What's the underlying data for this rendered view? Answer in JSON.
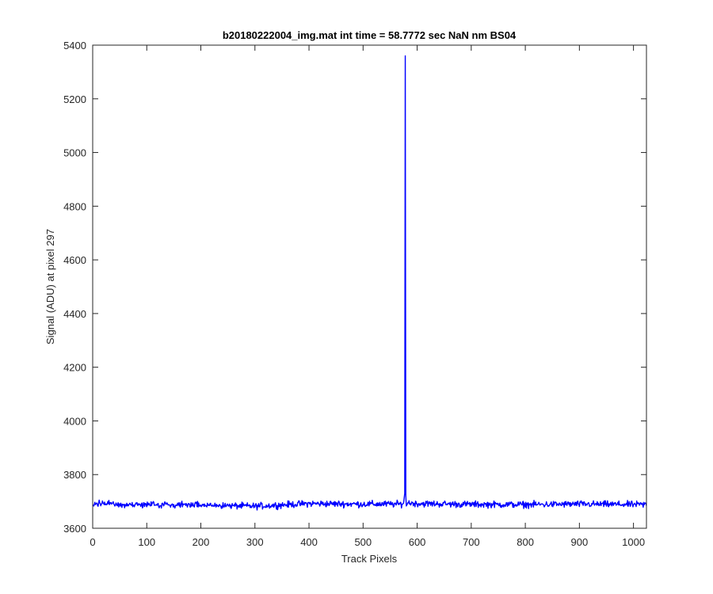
{
  "chart_data": {
    "type": "line",
    "title": "b20180222004_img.mat int time = 58.7772 sec  NaN nm BS04",
    "xlabel": "Track Pixels",
    "ylabel": "Signal (ADU) at pixel 297",
    "xlim": [
      0,
      1024
    ],
    "ylim": [
      3600,
      5400
    ],
    "xticks": [
      0,
      100,
      200,
      300,
      400,
      500,
      600,
      700,
      800,
      900,
      1000
    ],
    "yticks": [
      3600,
      3800,
      4000,
      4200,
      4400,
      4600,
      4800,
      5000,
      5200,
      5400
    ],
    "grid": false,
    "box": true,
    "series": [
      {
        "color": "#0000ff",
        "baseline": 3690,
        "noise_amplitude": 12,
        "x": [
          0,
          100,
          200,
          300,
          400,
          500,
          570,
          575,
          577,
          578,
          579,
          580,
          583,
          600,
          700,
          800,
          900,
          1024
        ],
        "values": [
          3692,
          3688,
          3686,
          3682,
          3692,
          3690,
          3690,
          3695,
          3730,
          5360,
          3720,
          3683,
          3695,
          3692,
          3689,
          3688,
          3690,
          3688
        ]
      }
    ]
  }
}
